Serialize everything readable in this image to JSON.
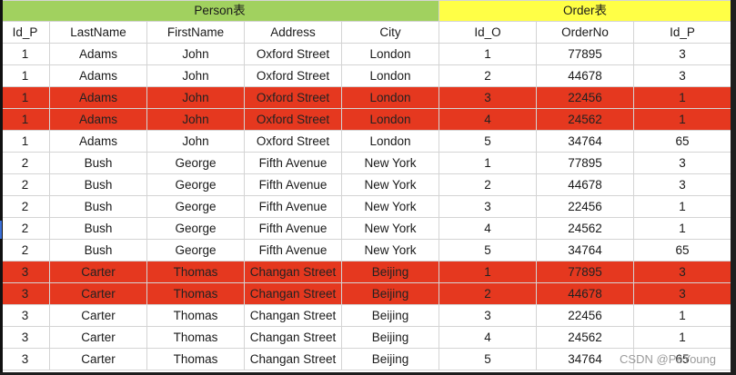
{
  "groups": {
    "person": "Person表",
    "order": "Order表"
  },
  "columns": [
    "Id_P",
    "LastName",
    "FirstName",
    "Address",
    "City",
    "Id_O",
    "OrderNo",
    "Id_P"
  ],
  "rows": [
    {
      "cells": [
        "1",
        "Adams",
        "John",
        "Oxford Street",
        "London",
        "1",
        "77895",
        "3"
      ],
      "highlight": false
    },
    {
      "cells": [
        "1",
        "Adams",
        "John",
        "Oxford Street",
        "London",
        "2",
        "44678",
        "3"
      ],
      "highlight": false
    },
    {
      "cells": [
        "1",
        "Adams",
        "John",
        "Oxford Street",
        "London",
        "3",
        "22456",
        "1"
      ],
      "highlight": true
    },
    {
      "cells": [
        "1",
        "Adams",
        "John",
        "Oxford Street",
        "London",
        "4",
        "24562",
        "1"
      ],
      "highlight": true
    },
    {
      "cells": [
        "1",
        "Adams",
        "John",
        "Oxford Street",
        "London",
        "5",
        "34764",
        "65"
      ],
      "highlight": false
    },
    {
      "cells": [
        "2",
        "Bush",
        "George",
        "Fifth Avenue",
        "New York",
        "1",
        "77895",
        "3"
      ],
      "highlight": false
    },
    {
      "cells": [
        "2",
        "Bush",
        "George",
        "Fifth Avenue",
        "New York",
        "2",
        "44678",
        "3"
      ],
      "highlight": false
    },
    {
      "cells": [
        "2",
        "Bush",
        "George",
        "Fifth Avenue",
        "New York",
        "3",
        "22456",
        "1"
      ],
      "highlight": false
    },
    {
      "cells": [
        "2",
        "Bush",
        "George",
        "Fifth Avenue",
        "New York",
        "4",
        "24562",
        "1"
      ],
      "highlight": false
    },
    {
      "cells": [
        "2",
        "Bush",
        "George",
        "Fifth Avenue",
        "New York",
        "5",
        "34764",
        "65"
      ],
      "highlight": false
    },
    {
      "cells": [
        "3",
        "Carter",
        "Thomas",
        "Changan Street",
        "Beijing",
        "1",
        "77895",
        "3"
      ],
      "highlight": true
    },
    {
      "cells": [
        "3",
        "Carter",
        "Thomas",
        "Changan Street",
        "Beijing",
        "2",
        "44678",
        "3"
      ],
      "highlight": true
    },
    {
      "cells": [
        "3",
        "Carter",
        "Thomas",
        "Changan Street",
        "Beijing",
        "3",
        "22456",
        "1"
      ],
      "highlight": false
    },
    {
      "cells": [
        "3",
        "Carter",
        "Thomas",
        "Changan Street",
        "Beijing",
        "4",
        "24562",
        "1"
      ],
      "highlight": false
    },
    {
      "cells": [
        "3",
        "Carter",
        "Thomas",
        "Changan Street",
        "Beijing",
        "5",
        "34764",
        "65"
      ],
      "highlight": false
    }
  ],
  "colors": {
    "person_header": "#a1d15f",
    "order_header": "#ffff46",
    "highlight_row": "#e5381f"
  },
  "watermark": "CSDN @PeYoung"
}
